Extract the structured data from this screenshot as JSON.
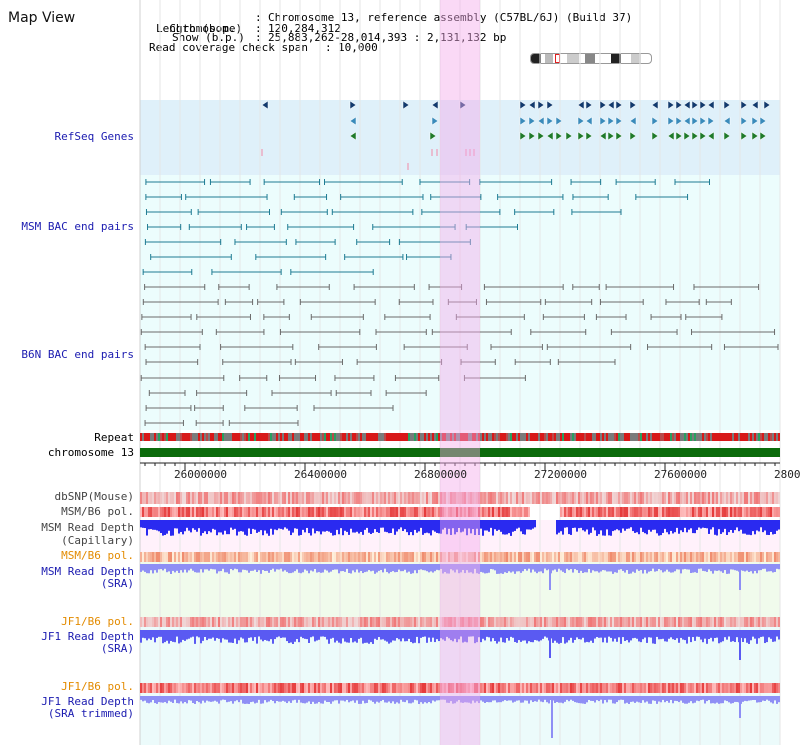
{
  "window": {
    "title": "Map View"
  },
  "info": {
    "chromosome_label": "Chromosome",
    "chromosome_value": "Chromosome 13, reference assembly (C57BL/6J) (Build 37)",
    "length_label": "Length (b.p.)",
    "length_value": "120,284,312",
    "show_label": "Show (b.p.)",
    "show_value": "25,883,262-28,014,393 : 2,131,132 bp",
    "coverage_label": "Read coverage check span",
    "coverage_value": "10,000"
  },
  "tracks": {
    "refseq": "RefSeq Genes",
    "msm_bac": "MSM BAC end pairs",
    "b6n_bac": "B6N BAC end pairs",
    "repeat": "Repeat",
    "chromosome": "chromosome 13",
    "dbsnp": "dbSNP(Mouse)",
    "msm_b6_pol": "MSM/B6 pol.",
    "msm_depth_cap_1": "MSM Read Depth",
    "msm_depth_cap_2": "(Capillary)",
    "msm_b6_pol_2": "MSM/B6 pol.",
    "msm_depth_sra_1": "MSM Read Depth",
    "msm_depth_sra_2": "(SRA)",
    "jf1_b6_pol": "JF1/B6 pol.",
    "jf1_depth_sra_1": "JF1 Read Depth",
    "jf1_depth_sra_2": "(SRA)",
    "jf1_b6_pol_2": "JF1/B6 pol.",
    "jf1_depth_trim_1": "JF1 Read Depth",
    "jf1_depth_trim_2": "(SRA trimmed)"
  },
  "ruler": {
    "ticks": [
      "26000000",
      "26400000",
      "26800000",
      "27200000",
      "27600000",
      "2800"
    ]
  },
  "colors": {
    "refseq_bg": "#e0f0fa",
    "bac_bg": "#eafcfc",
    "highlight": "#f7d8f2",
    "gene_dark": "#123a6e",
    "gene_mid": "#3a8bbb",
    "gene_green": "#1f7a2a",
    "chrom_bar": "#0b6b0b",
    "depth_blue": "#2a2af0",
    "depth_light": "#8f8ff5"
  }
}
